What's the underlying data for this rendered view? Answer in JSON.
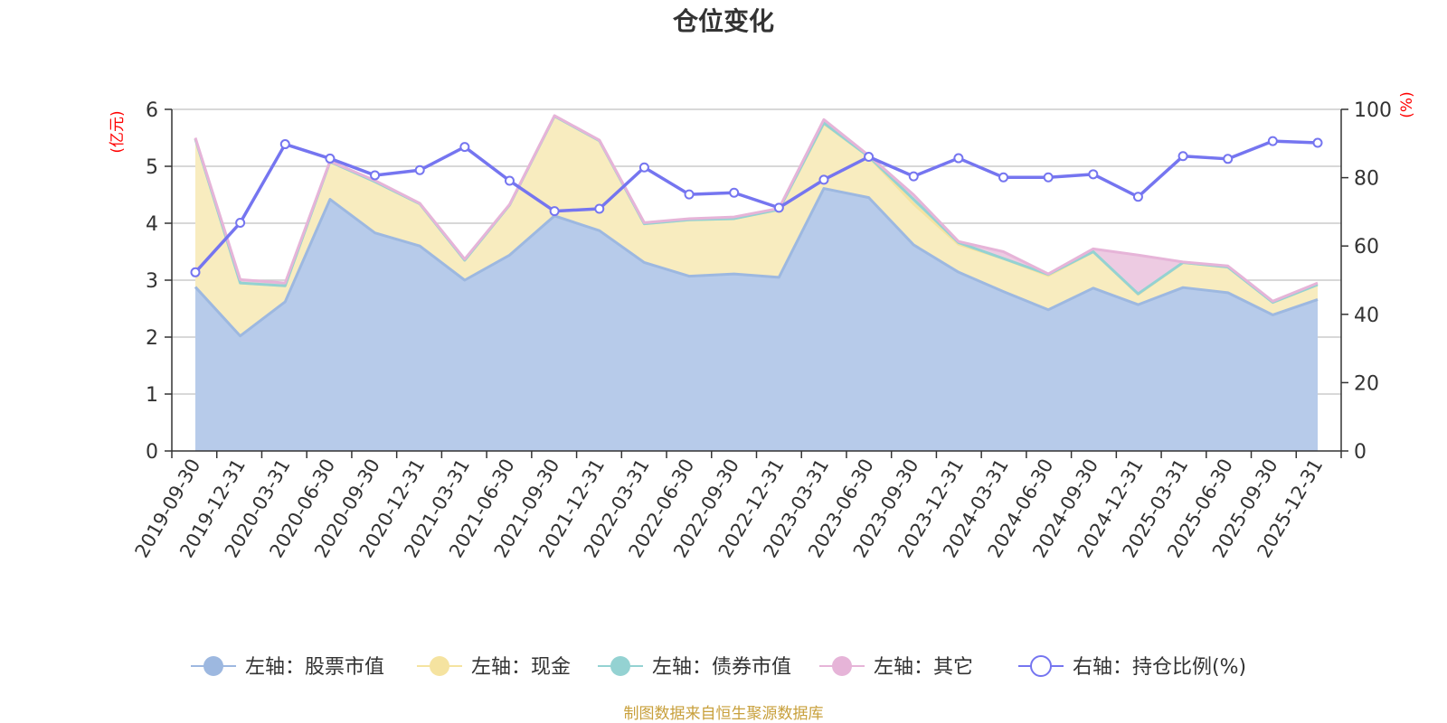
{
  "chart_data": {
    "type": "area",
    "title": "仓位变化",
    "left_axis": {
      "unit": "(亿元)",
      "ylim": [
        0,
        6
      ],
      "ticks": [
        0,
        1,
        2,
        3,
        4,
        5,
        6
      ]
    },
    "right_axis": {
      "unit": "(%)",
      "ylim": [
        0,
        100
      ],
      "ticks": [
        0,
        20,
        40,
        60,
        80,
        100
      ]
    },
    "x": [
      "2019-09-30",
      "2019-12-31",
      "2020-03-31",
      "2020-06-30",
      "2020-09-30",
      "2020-12-31",
      "2021-03-31",
      "2021-06-30",
      "2021-09-30",
      "2021-12-31",
      "2022-03-31",
      "2022-06-30",
      "2022-09-30",
      "2022-12-31",
      "2023-03-31",
      "2023-06-30",
      "2023-09-30",
      "2023-12-31",
      "2024-03-31",
      "2024-06-30",
      "2024-09-30",
      "2024-12-31",
      "2025-03-31",
      "2025-06-30",
      "2025-09-30",
      "2025-12-31"
    ],
    "grid": true,
    "stacked": true,
    "series": [
      {
        "name": "左轴：股票市值",
        "axis": "left",
        "kind": "area",
        "color": "#9db8e0",
        "fill": "#b7cbea",
        "values": [
          2.88,
          2.02,
          2.62,
          4.42,
          3.83,
          3.6,
          3.0,
          3.44,
          4.13,
          3.87,
          3.31,
          3.07,
          3.11,
          3.05,
          4.61,
          4.45,
          3.62,
          3.14,
          2.8,
          2.48,
          2.86,
          2.57,
          2.87,
          2.78,
          2.39,
          2.66
        ]
      },
      {
        "name": "左轴：现金",
        "axis": "left",
        "kind": "area",
        "color": "#f5e3a0",
        "fill": "#f8ecbf",
        "values": [
          2.6,
          0.93,
          0.28,
          0.66,
          0.9,
          0.74,
          0.35,
          0.88,
          1.75,
          1.58,
          0.68,
          0.99,
          0.97,
          1.19,
          1.14,
          0.72,
          0.72,
          0.49,
          0.58,
          0.6,
          0.64,
          0.18,
          0.44,
          0.45,
          0.22,
          0.26
        ]
      },
      {
        "name": "左轴：债券市值",
        "axis": "left",
        "kind": "area",
        "color": "#94d2d2",
        "fill": "#c4e4dc",
        "values": [
          0.0,
          0.0,
          0.0,
          0.0,
          0.0,
          0.0,
          0.0,
          0.0,
          0.0,
          0.0,
          0.0,
          0.0,
          0.0,
          0.0,
          0.01,
          0.0,
          0.08,
          0.03,
          0.0,
          0.02,
          0.0,
          0.01,
          0.0,
          0.0,
          0.0,
          0.0
        ]
      },
      {
        "name": "左轴：其它",
        "axis": "left",
        "kind": "area",
        "color": "#e6b4d8",
        "fill": "#edcbe2",
        "values": [
          0.02,
          0.06,
          0.05,
          0.01,
          0.02,
          0.01,
          0.02,
          0.01,
          0.01,
          0.01,
          0.02,
          0.02,
          0.03,
          0.02,
          0.06,
          0.02,
          0.08,
          0.02,
          0.12,
          0.01,
          0.05,
          0.68,
          0.01,
          0.02,
          0.02,
          0.03
        ]
      },
      {
        "name": "右轴：持仓比例(%)",
        "axis": "right",
        "kind": "line",
        "color": "#7575f0",
        "values": [
          52.3,
          66.8,
          89.8,
          85.6,
          80.7,
          82.2,
          89.0,
          79.1,
          70.2,
          70.9,
          83.0,
          75.1,
          75.6,
          71.2,
          79.4,
          86.1,
          80.4,
          85.7,
          80.1,
          80.1,
          81.0,
          74.4,
          86.3,
          85.5,
          90.7,
          90.2
        ]
      }
    ],
    "legend_position": "bottom-center",
    "source_note": "制图数据来自恒生聚源数据库"
  }
}
